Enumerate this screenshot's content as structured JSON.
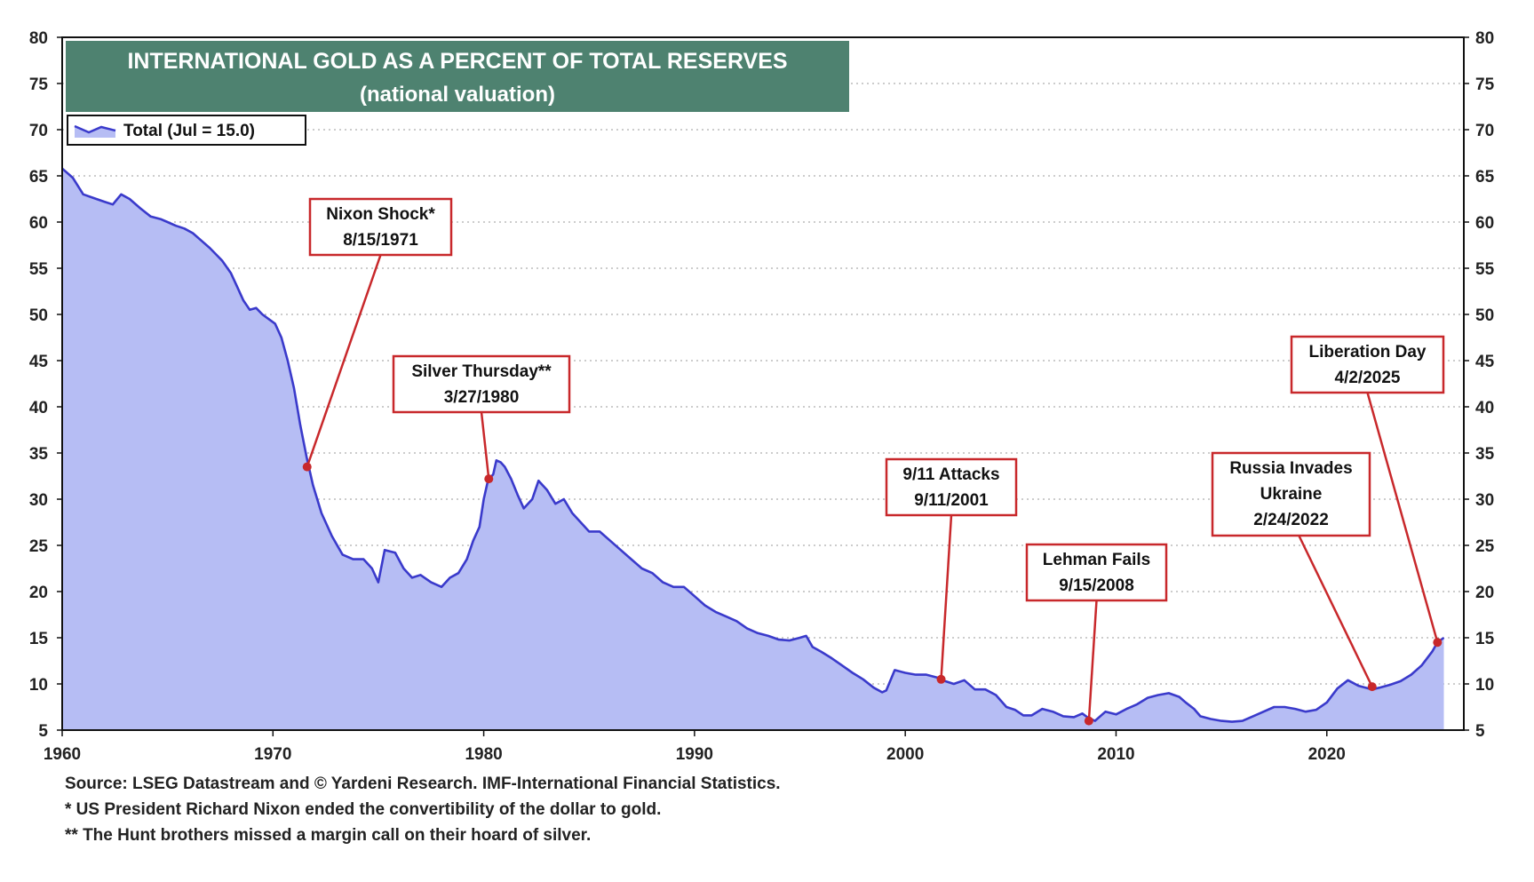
{
  "chart_data": {
    "type": "area",
    "title": "INTERNATIONAL GOLD AS A PERCENT OF TOTAL RESERVES",
    "subtitle": "(national valuation)",
    "legend": {
      "label": "Total (Jul = 15.0)",
      "placement": "top-left"
    },
    "xlim": [
      1960,
      2026.5
    ],
    "ylim": [
      5,
      80
    ],
    "x_ticks": [
      1960,
      1970,
      1980,
      1990,
      2000,
      2010,
      2020
    ],
    "x_tick_labels": [
      "1960",
      "1970",
      "1980",
      "1990",
      "2000",
      "2010",
      "2020"
    ],
    "y_ticks": [
      5,
      10,
      15,
      20,
      25,
      30,
      35,
      40,
      45,
      50,
      55,
      60,
      65,
      70,
      75,
      80
    ],
    "y_tick_labels": [
      "5",
      "10",
      "15",
      "20",
      "25",
      "30",
      "35",
      "40",
      "45",
      "50",
      "55",
      "60",
      "65",
      "70",
      "75",
      "80"
    ],
    "grid": "dotted-horizontal",
    "colors": {
      "line": "#3a3acb",
      "fill": "#b6bdf4",
      "title_bg": "#4e8270",
      "annotation": "#c8282b"
    },
    "series": [
      {
        "name": "Total",
        "x": [
          1960.0,
          1960.5,
          1961.0,
          1961.5,
          1962.0,
          1962.4,
          1962.8,
          1963.2,
          1963.7,
          1964.2,
          1964.7,
          1965.0,
          1965.4,
          1965.8,
          1966.2,
          1966.6,
          1967.0,
          1967.3,
          1967.6,
          1968.0,
          1968.3,
          1968.6,
          1968.9,
          1969.2,
          1969.5,
          1969.8,
          1970.1,
          1970.4,
          1970.7,
          1971.0,
          1971.3,
          1971.6,
          1971.9,
          1972.3,
          1972.8,
          1973.3,
          1973.8,
          1974.3,
          1974.7,
          1975.0,
          1975.3,
          1975.8,
          1976.2,
          1976.6,
          1977.0,
          1977.5,
          1978.0,
          1978.4,
          1978.8,
          1979.2,
          1979.5,
          1979.8,
          1980.0,
          1980.2,
          1980.45,
          1980.6,
          1980.8,
          1981.0,
          1981.3,
          1981.6,
          1981.9,
          1982.3,
          1982.6,
          1983.0,
          1983.4,
          1983.8,
          1984.2,
          1984.6,
          1985.0,
          1985.5,
          1986.0,
          1986.5,
          1987.0,
          1987.5,
          1988.0,
          1988.5,
          1989.0,
          1989.5,
          1990.0,
          1990.5,
          1991.0,
          1991.5,
          1992.0,
          1992.5,
          1993.0,
          1993.5,
          1994.0,
          1994.5,
          1995.0,
          1995.3,
          1995.6,
          1996.0,
          1996.5,
          1997.0,
          1997.5,
          1998.0,
          1998.5,
          1998.9,
          1999.1,
          1999.5,
          2000.0,
          2000.5,
          2001.0,
          2001.5,
          2001.75,
          2002.3,
          2002.8,
          2003.3,
          2003.8,
          2004.3,
          2004.8,
          2005.2,
          2005.6,
          2006.0,
          2006.5,
          2007.0,
          2007.5,
          2008.0,
          2008.4,
          2008.7,
          2009.0,
          2009.5,
          2010.0,
          2010.5,
          2011.0,
          2011.5,
          2012.0,
          2012.5,
          2013.0,
          2013.3,
          2013.7,
          2014.0,
          2014.5,
          2015.0,
          2015.5,
          2016.0,
          2016.5,
          2017.0,
          2017.5,
          2018.0,
          2018.5,
          2019.0,
          2019.5,
          2020.0,
          2020.5,
          2021.0,
          2021.5,
          2022.0,
          2022.15,
          2022.5,
          2023.0,
          2023.5,
          2024.0,
          2024.5,
          2025.0,
          2025.25,
          2025.55
        ],
        "values": [
          65.8,
          64.8,
          63.0,
          62.6,
          62.2,
          61.9,
          63.0,
          62.5,
          61.5,
          60.6,
          60.3,
          60.0,
          59.6,
          59.3,
          58.8,
          58.0,
          57.2,
          56.5,
          55.8,
          54.5,
          53.0,
          51.5,
          50.5,
          50.7,
          50.0,
          49.5,
          49.0,
          47.5,
          45.0,
          42.0,
          38.0,
          34.5,
          31.5,
          28.5,
          26.0,
          24.0,
          23.5,
          23.5,
          22.5,
          21.0,
          24.5,
          24.2,
          22.5,
          21.5,
          21.8,
          21.0,
          20.5,
          21.5,
          22.0,
          23.5,
          25.5,
          27.0,
          30.0,
          32.0,
          32.7,
          34.2,
          34.0,
          33.5,
          32.2,
          30.5,
          29.0,
          30.0,
          32.0,
          31.0,
          29.5,
          30.0,
          28.5,
          27.5,
          26.5,
          26.5,
          25.5,
          24.5,
          23.5,
          22.5,
          22.0,
          21.0,
          20.5,
          20.5,
          19.5,
          18.5,
          17.8,
          17.3,
          16.8,
          16.0,
          15.5,
          15.2,
          14.8,
          14.7,
          15.0,
          15.2,
          14.0,
          13.5,
          12.8,
          12.0,
          11.2,
          10.5,
          9.6,
          9.1,
          9.3,
          11.5,
          11.2,
          11.0,
          11.0,
          10.7,
          10.4,
          10.0,
          10.4,
          9.4,
          9.4,
          8.8,
          7.5,
          7.2,
          6.6,
          6.6,
          7.3,
          7.0,
          6.5,
          6.4,
          6.8,
          6.3,
          6.0,
          7.0,
          6.7,
          7.3,
          7.8,
          8.5,
          8.8,
          9.0,
          8.6,
          8.0,
          7.3,
          6.5,
          6.2,
          6.0,
          5.9,
          6.0,
          6.5,
          7.0,
          7.5,
          7.5,
          7.3,
          7.0,
          7.2,
          8.0,
          9.5,
          10.4,
          9.8,
          9.5,
          9.4,
          9.6,
          9.9,
          10.3,
          11.0,
          12.0,
          13.5,
          14.5,
          15.0
        ]
      }
    ],
    "annotations": [
      {
        "label": "Nixon Shock*",
        "date": "8/15/1971",
        "x": 1971.62,
        "y": 33.5
      },
      {
        "label": "Silver Thursday**",
        "date": "3/27/1980",
        "x": 1980.24,
        "y": 32.2
      },
      {
        "label": "9/11 Attacks",
        "date": "9/11/2001",
        "x": 2001.7,
        "y": 10.5
      },
      {
        "label": "Lehman Fails",
        "date": "9/15/2008",
        "x": 2008.71,
        "y": 6.0
      },
      {
        "label": "Russia Invades",
        "label2": "Ukraine",
        "date": "2/24/2022",
        "x": 2022.15,
        "y": 9.7
      },
      {
        "label": "Liberation Day",
        "date": "4/2/2025",
        "x": 2025.25,
        "y": 14.5
      }
    ]
  },
  "notes": {
    "source": "Source: LSEG Datastream and © Yardeni Research. IMF-International Financial Statistics.",
    "note1": "* US President Richard Nixon ended the convertibility of the dollar to gold.",
    "note2": "** The Hunt brothers missed a margin call on their hoard of silver."
  }
}
